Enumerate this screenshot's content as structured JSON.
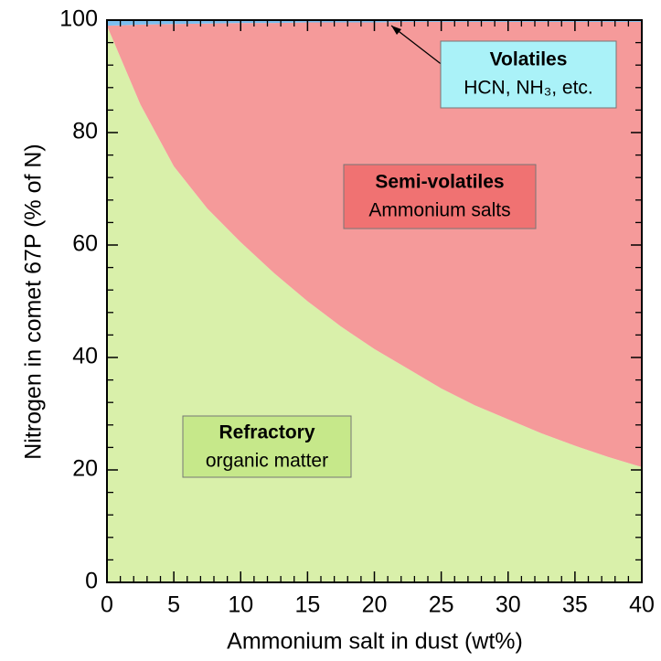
{
  "chart_data": {
    "type": "area",
    "stacked": true,
    "xlabel": "Ammonium salt in dust (wt%)",
    "ylabel": "Nitrogen in comet 67P (% of N)",
    "x": [
      0,
      2.5,
      5,
      7.5,
      10,
      12.5,
      15,
      17.5,
      20,
      22.5,
      25,
      27.5,
      30,
      32.5,
      35,
      37.5,
      40
    ],
    "series": [
      {
        "color": "#d9f0aa",
        "values": [
          99,
          85,
          74,
          66.5,
          60.5,
          55,
          50,
          45.5,
          41.5,
          38,
          34.5,
          31.5,
          29,
          26.5,
          24.3,
          22.3,
          20.5
        ]
      },
      {
        "color": "#f59a9a",
        "values": [
          0,
          14.2,
          25.3,
          32.9,
          39,
          44.5,
          49.6,
          54.1,
          58.1,
          61.7,
          65.2,
          68.2,
          70.7,
          73.2,
          75.4,
          77.4,
          79.2
        ]
      },
      {
        "color": "#7cbff0",
        "values": [
          1,
          0.8,
          0.7,
          0.6,
          0.5,
          0.5,
          0.4,
          0.4,
          0.4,
          0.3,
          0.3,
          0.3,
          0.3,
          0.3,
          0.3,
          0.3,
          0.3
        ]
      }
    ],
    "xlim": [
      0,
      40
    ],
    "ylim": [
      0,
      100
    ],
    "xticks": [
      0,
      5,
      10,
      15,
      20,
      25,
      30,
      35,
      40
    ],
    "yticks": [
      0,
      20,
      40,
      60,
      80,
      100
    ],
    "xminorticks": [
      1,
      2,
      3,
      4,
      6,
      7,
      8,
      9,
      11,
      12,
      13,
      14,
      16,
      17,
      18,
      19,
      21,
      22,
      23,
      24,
      26,
      27,
      28,
      29,
      31,
      32,
      33,
      34,
      36,
      37,
      38,
      39
    ],
    "yminorticks": [
      4,
      8,
      12,
      16,
      24,
      28,
      32,
      36,
      44,
      48,
      52,
      56,
      64,
      68,
      72,
      76,
      84,
      88,
      92,
      96
    ],
    "annotations": [
      {
        "title": "Volatiles",
        "text": "HCN, NH₃, etc.",
        "color": "#aaf2f8"
      },
      {
        "title": "Semi-volatiles",
        "text": "Ammonium salts",
        "color": "#f07272"
      },
      {
        "title": "Refractory",
        "text": "organic matter",
        "color": "#c6e88a"
      }
    ]
  }
}
